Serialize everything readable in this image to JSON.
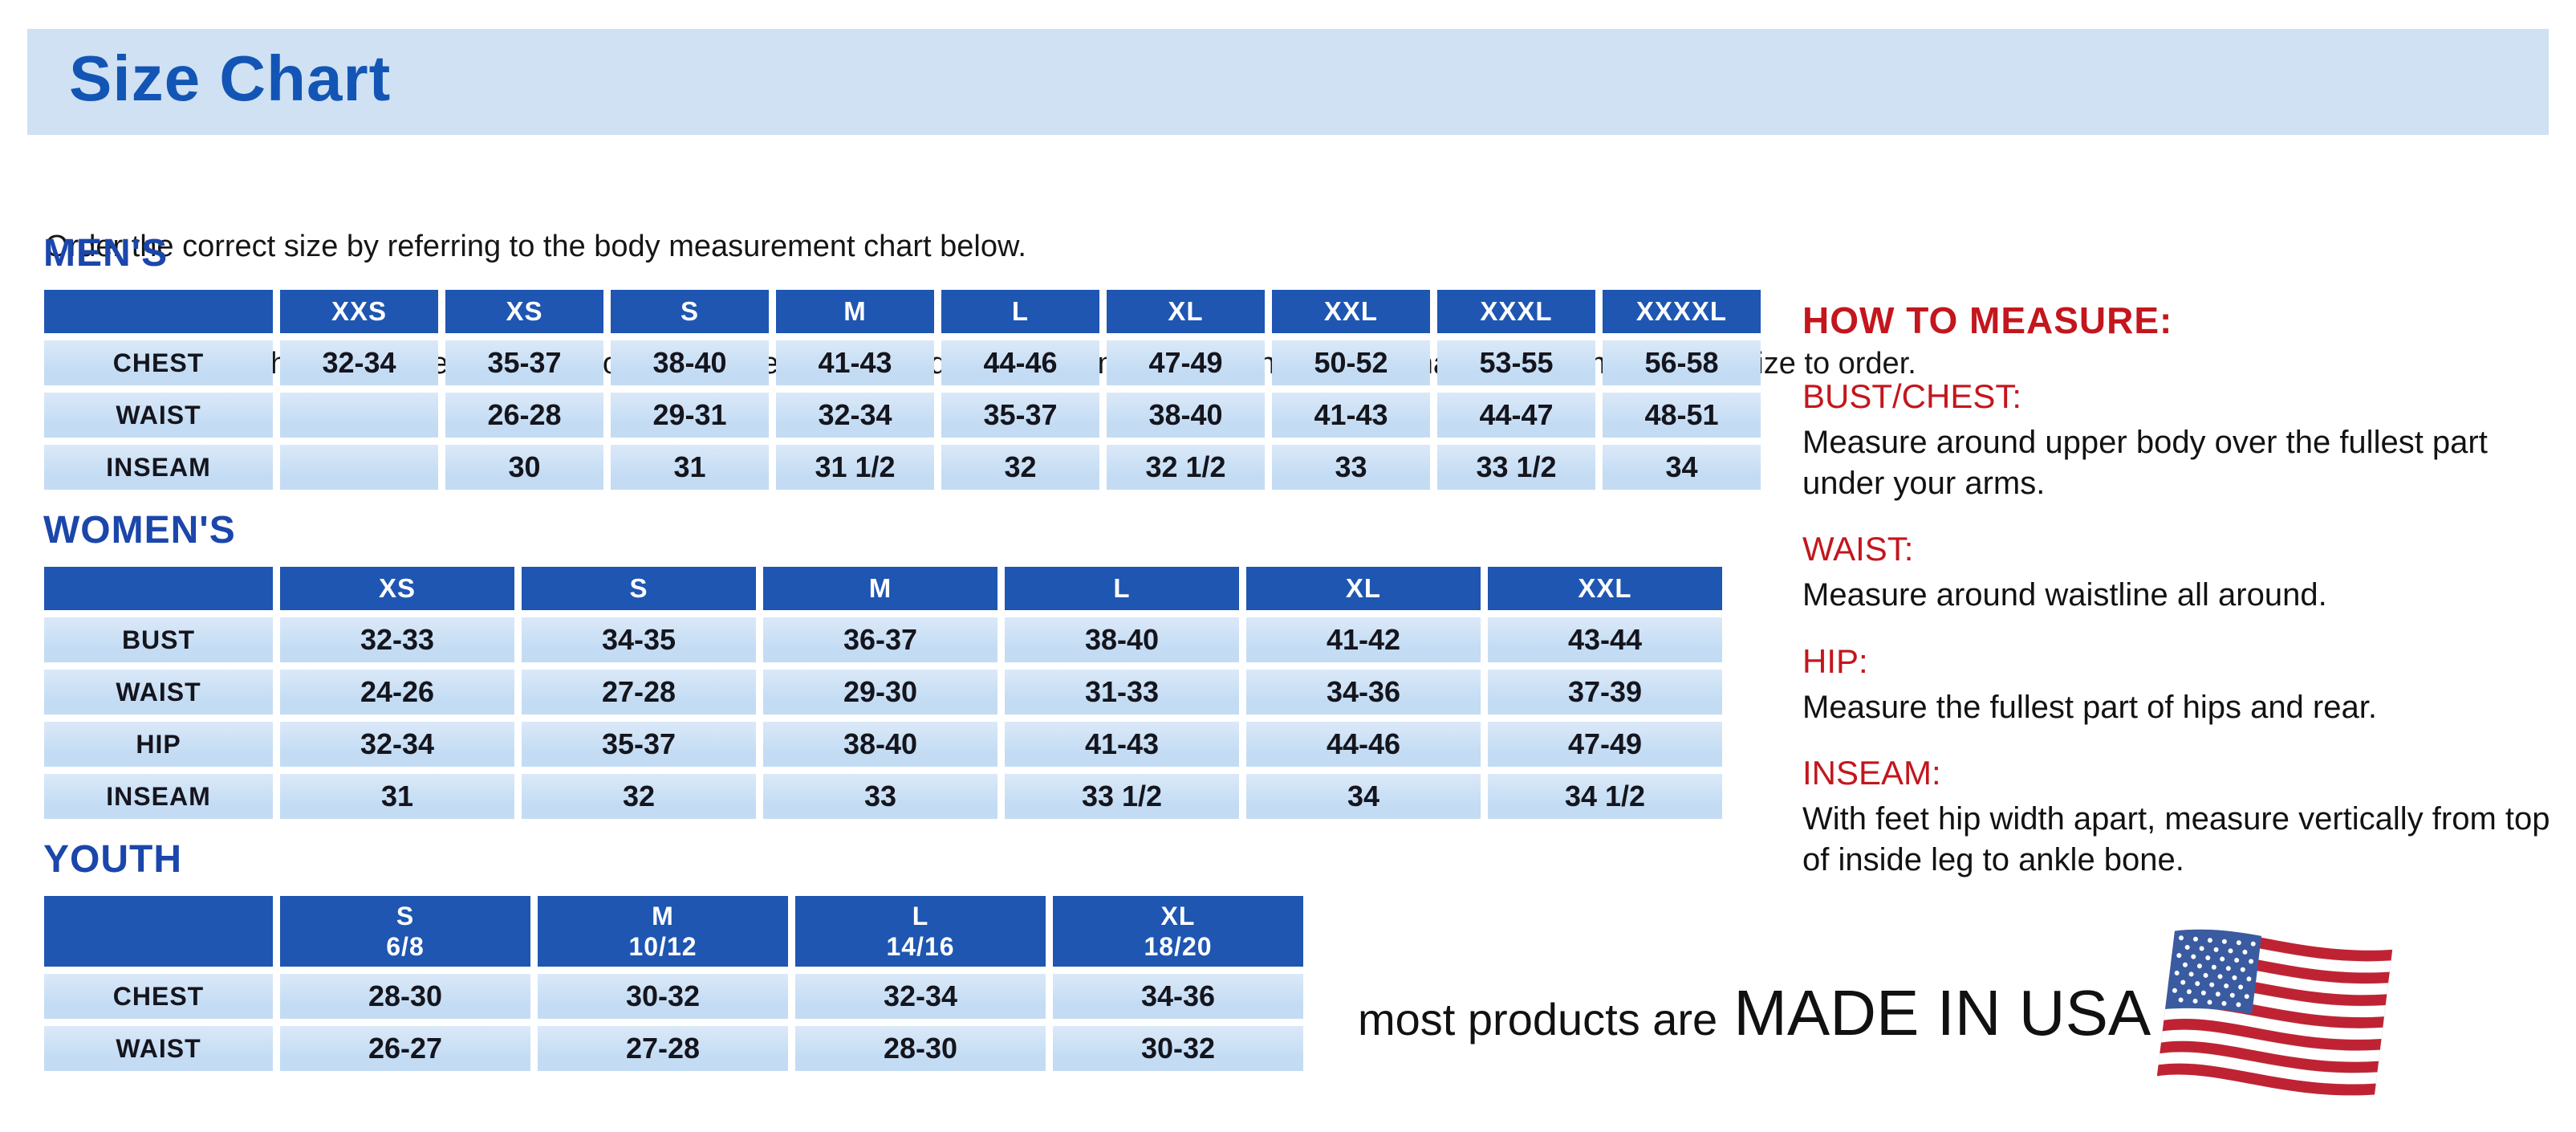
{
  "page": {
    "title": "Size Chart",
    "intro_line1": "Order the correct size by referring to the body measurement chart below.",
    "intro_line2": "Measurements shown on size chart are body measurements.  Find your body measurements on the chart to determine which size to order."
  },
  "tables": {
    "mens": {
      "heading": "MEN'S",
      "columns": [
        "XXS",
        "XS",
        "S",
        "M",
        "L",
        "XL",
        "XXL",
        "XXXL",
        "XXXXL"
      ],
      "rows": [
        {
          "label": "CHEST",
          "values": [
            "32-34",
            "35-37",
            "38-40",
            "41-43",
            "44-46",
            "47-49",
            "50-52",
            "53-55",
            "56-58"
          ]
        },
        {
          "label": "WAIST",
          "values": [
            "",
            "26-28",
            "29-31",
            "32-34",
            "35-37",
            "38-40",
            "41-43",
            "44-47",
            "48-51"
          ]
        },
        {
          "label": "INSEAM",
          "values": [
            "",
            "30",
            "31",
            "31 1/2",
            "32",
            "32 1/2",
            "33",
            "33 1/2",
            "34"
          ]
        }
      ]
    },
    "womens": {
      "heading": "WOMEN'S",
      "columns": [
        "XS",
        "S",
        "M",
        "L",
        "XL",
        "XXL"
      ],
      "rows": [
        {
          "label": "BUST",
          "values": [
            "32-33",
            "34-35",
            "36-37",
            "38-40",
            "41-42",
            "43-44"
          ]
        },
        {
          "label": "WAIST",
          "values": [
            "24-26",
            "27-28",
            "29-30",
            "31-33",
            "34-36",
            "37-39"
          ]
        },
        {
          "label": "HIP",
          "values": [
            "32-34",
            "35-37",
            "38-40",
            "41-43",
            "44-46",
            "47-49"
          ]
        },
        {
          "label": "INSEAM",
          "values": [
            "31",
            "32",
            "33",
            "33 1/2",
            "34",
            "34 1/2"
          ]
        }
      ]
    },
    "youth": {
      "heading": "YOUTH",
      "columns": [
        {
          "size": "S",
          "range": "6/8"
        },
        {
          "size": "M",
          "range": "10/12"
        },
        {
          "size": "L",
          "range": "14/16"
        },
        {
          "size": "XL",
          "range": "18/20"
        }
      ],
      "rows": [
        {
          "label": "CHEST",
          "values": [
            "28-30",
            "30-32",
            "32-34",
            "34-36"
          ]
        },
        {
          "label": "WAIST",
          "values": [
            "26-27",
            "27-28",
            "28-30",
            "30-32"
          ]
        }
      ]
    }
  },
  "how_to_measure": {
    "heading": "HOW TO MEASURE:",
    "sections": [
      {
        "label": "BUST/CHEST:",
        "text": "Measure around upper body over the fullest part under your arms."
      },
      {
        "label": "WAIST:",
        "text": "Measure around waistline all around."
      },
      {
        "label": "HIP:",
        "text": "Measure the fullest part of hips and rear."
      },
      {
        "label": "INSEAM:",
        "text": "With feet hip width apart, measure vertically from top of inside leg to ankle bone."
      }
    ]
  },
  "footer": {
    "prefix": "most products are",
    "made_in": "MADE IN USA",
    "flag_icon": "us-flag-icon"
  },
  "colors": {
    "banner_bg": "#cfe1f3",
    "title_blue": "#1355b5",
    "section_blue": "#1b46ab",
    "header_blue": "#1e56b2",
    "cell_blue": "#c3dcf4",
    "accent_red": "#c3161d",
    "text_black": "#161616",
    "flag_red": "#bf2333",
    "flag_blue": "#3a5ba0"
  }
}
